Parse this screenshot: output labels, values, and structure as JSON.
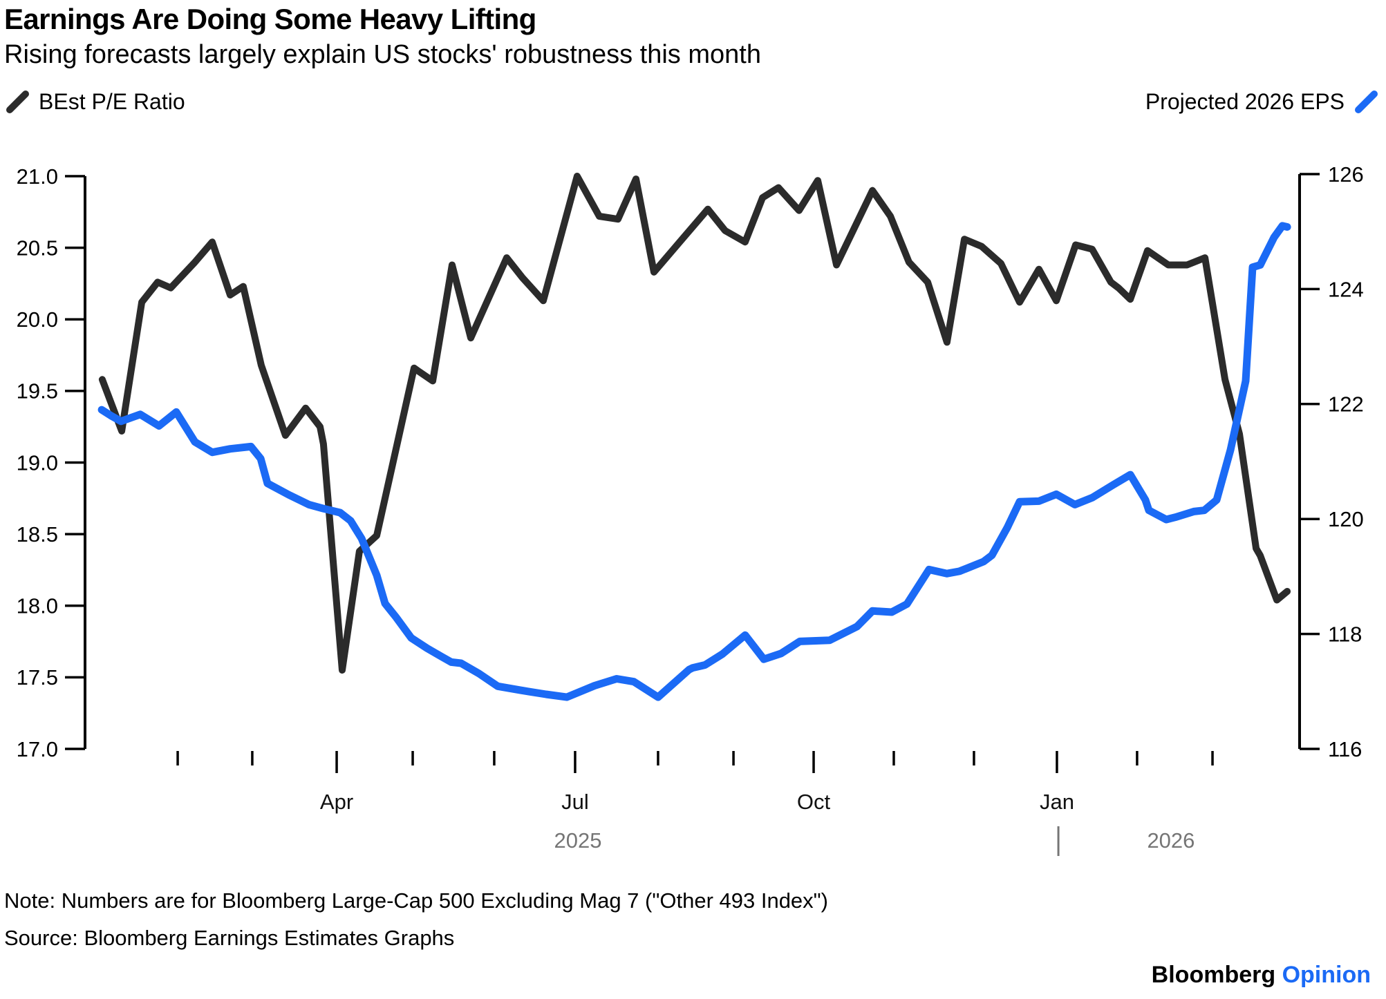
{
  "chart_data": {
    "type": "line",
    "title": "Earnings Are Doing Some Heavy Lifting",
    "subtitle": "Rising forecasts largely explain US stocks' robustness this month",
    "note": "Note: Numbers are for Bloomberg Large-Cap 500 Excluding Mag 7 (\"Other 493 Index\")",
    "source": "Source: Bloomberg Earnings Estimates Graphs",
    "legend_position": "top",
    "grid": false,
    "left_axis": {
      "ylim": [
        17.0,
        21.0
      ],
      "ticks": [
        21.0,
        20.5,
        20.0,
        19.5,
        19.0,
        18.5,
        18.0,
        17.5,
        17.0
      ],
      "decimals": 1
    },
    "right_axis": {
      "ylim": [
        116,
        126
      ],
      "ticks": [
        126,
        124,
        122,
        120,
        118,
        116
      ],
      "decimals": 0
    },
    "x_axis": {
      "months": [
        {
          "t": 0.0763,
          "label": ""
        },
        {
          "t": 0.1377,
          "label": ""
        },
        {
          "t": 0.2072,
          "label": "Apr"
        },
        {
          "t": 0.2698,
          "label": ""
        },
        {
          "t": 0.3369,
          "label": ""
        },
        {
          "t": 0.4035,
          "label": "Jul"
        },
        {
          "t": 0.4718,
          "label": ""
        },
        {
          "t": 0.5339,
          "label": ""
        },
        {
          "t": 0.5999,
          "label": "Oct"
        },
        {
          "t": 0.6659,
          "label": ""
        },
        {
          "t": 0.7319,
          "label": ""
        },
        {
          "t": 0.8002,
          "label": "Jan"
        },
        {
          "t": 0.8662,
          "label": ""
        },
        {
          "t": 0.9283,
          "label": ""
        }
      ],
      "years": [
        {
          "t": 0.4058,
          "label": "2025"
        },
        {
          "t": 0.8941,
          "label": "2026"
        }
      ],
      "year_divider_t": 0.8014
    },
    "series": [
      {
        "name": "BEst P/E Ratio",
        "axis": "left",
        "color": "#2b2b2b",
        "stroke_width": 10,
        "points": [
          [
            0.0142,
            19.58
          ],
          [
            0.0302,
            19.22
          ],
          [
            0.0467,
            20.12
          ],
          [
            0.0598,
            20.26
          ],
          [
            0.0706,
            20.22
          ],
          [
            0.0905,
            20.4
          ],
          [
            0.1047,
            20.54
          ],
          [
            0.1195,
            20.17
          ],
          [
            0.1303,
            20.23
          ],
          [
            0.1451,
            19.68
          ],
          [
            0.165,
            19.19
          ],
          [
            0.1816,
            19.38
          ],
          [
            0.1935,
            19.25
          ],
          [
            0.1963,
            19.13
          ],
          [
            0.2117,
            17.55
          ],
          [
            0.2259,
            18.38
          ],
          [
            0.2402,
            18.49
          ],
          [
            0.2709,
            19.66
          ],
          [
            0.2743,
            19.64
          ],
          [
            0.2863,
            19.57
          ],
          [
            0.3022,
            20.38
          ],
          [
            0.3176,
            19.87
          ],
          [
            0.3472,
            20.43
          ],
          [
            0.3602,
            20.29
          ],
          [
            0.3773,
            20.13
          ],
          [
            0.4052,
            21.0
          ],
          [
            0.4234,
            20.72
          ],
          [
            0.4388,
            20.7
          ],
          [
            0.4536,
            20.98
          ],
          [
            0.4684,
            20.33
          ],
          [
            0.4906,
            20.55
          ],
          [
            0.5128,
            20.77
          ],
          [
            0.527,
            20.62
          ],
          [
            0.5435,
            20.54
          ],
          [
            0.5578,
            20.85
          ],
          [
            0.5709,
            20.92
          ],
          [
            0.5879,
            20.76
          ],
          [
            0.6033,
            20.97
          ],
          [
            0.6187,
            20.38
          ],
          [
            0.6483,
            20.9
          ],
          [
            0.6631,
            20.72
          ],
          [
            0.6784,
            20.4
          ],
          [
            0.6938,
            20.26
          ],
          [
            0.7097,
            19.84
          ],
          [
            0.724,
            20.56
          ],
          [
            0.7382,
            20.51
          ],
          [
            0.7541,
            20.39
          ],
          [
            0.7695,
            20.12
          ],
          [
            0.7854,
            20.35
          ],
          [
            0.7997,
            20.13
          ],
          [
            0.8156,
            20.52
          ],
          [
            0.8292,
            20.49
          ],
          [
            0.8446,
            20.26
          ],
          [
            0.8509,
            20.22
          ],
          [
            0.8606,
            20.14
          ],
          [
            0.8748,
            20.48
          ],
          [
            0.8919,
            20.38
          ],
          [
            0.9073,
            20.38
          ],
          [
            0.9221,
            20.43
          ],
          [
            0.9386,
            19.58
          ],
          [
            0.9505,
            19.2
          ],
          [
            0.9642,
            18.4
          ],
          [
            0.9676,
            18.35
          ],
          [
            0.9813,
            18.04
          ],
          [
            0.9898,
            18.1
          ]
        ]
      },
      {
        "name": "Projected 2026 EPS",
        "axis": "right",
        "color": "#1b6af5",
        "stroke_width": 11,
        "points": [
          [
            0.0137,
            121.9
          ],
          [
            0.0211,
            121.8
          ],
          [
            0.0296,
            121.7
          ],
          [
            0.0455,
            121.82
          ],
          [
            0.0609,
            121.62
          ],
          [
            0.0751,
            121.86
          ],
          [
            0.0905,
            121.34
          ],
          [
            0.1047,
            121.16
          ],
          [
            0.1195,
            121.22
          ],
          [
            0.1366,
            121.26
          ],
          [
            0.1446,
            121.05
          ],
          [
            0.1502,
            120.62
          ],
          [
            0.1679,
            120.42
          ],
          [
            0.1844,
            120.25
          ],
          [
            0.1963,
            120.18
          ],
          [
            0.21,
            120.11
          ],
          [
            0.2186,
            119.97
          ],
          [
            0.2277,
            119.66
          ],
          [
            0.2402,
            119.02
          ],
          [
            0.247,
            118.53
          ],
          [
            0.2561,
            118.29
          ],
          [
            0.2686,
            117.93
          ],
          [
            0.2817,
            117.75
          ],
          [
            0.2931,
            117.61
          ],
          [
            0.3016,
            117.51
          ],
          [
            0.3096,
            117.49
          ],
          [
            0.3244,
            117.31
          ],
          [
            0.3398,
            117.09
          ],
          [
            0.3586,
            117.02
          ],
          [
            0.3796,
            116.95
          ],
          [
            0.3967,
            116.9
          ],
          [
            0.4195,
            117.1
          ],
          [
            0.4377,
            117.22
          ],
          [
            0.4519,
            117.17
          ],
          [
            0.4718,
            116.9
          ],
          [
            0.4974,
            117.38
          ],
          [
            0.5003,
            117.41
          ],
          [
            0.5105,
            117.46
          ],
          [
            0.5248,
            117.65
          ],
          [
            0.5435,
            117.98
          ],
          [
            0.5589,
            117.56
          ],
          [
            0.5731,
            117.66
          ],
          [
            0.5885,
            117.87
          ],
          [
            0.613,
            117.89
          ],
          [
            0.6357,
            118.13
          ],
          [
            0.6483,
            118.4
          ],
          [
            0.6642,
            118.38
          ],
          [
            0.6767,
            118.52
          ],
          [
            0.6949,
            119.12
          ],
          [
            0.7097,
            119.05
          ],
          [
            0.72,
            119.09
          ],
          [
            0.7399,
            119.26
          ],
          [
            0.7467,
            119.37
          ],
          [
            0.7593,
            119.85
          ],
          [
            0.7695,
            120.3
          ],
          [
            0.7854,
            120.31
          ],
          [
            0.7997,
            120.43
          ],
          [
            0.815,
            120.25
          ],
          [
            0.8292,
            120.37
          ],
          [
            0.8463,
            120.59
          ],
          [
            0.8606,
            120.77
          ],
          [
            0.8731,
            120.33
          ],
          [
            0.8759,
            120.15
          ],
          [
            0.8902,
            119.99
          ],
          [
            0.8976,
            120.03
          ],
          [
            0.913,
            120.13
          ],
          [
            0.9215,
            120.15
          ],
          [
            0.9317,
            120.33
          ],
          [
            0.9431,
            121.2
          ],
          [
            0.9556,
            122.4
          ],
          [
            0.9613,
            124.38
          ],
          [
            0.9676,
            124.42
          ],
          [
            0.979,
            124.9
          ],
          [
            0.9858,
            125.1
          ],
          [
            0.9898,
            125.08
          ]
        ]
      }
    ]
  },
  "footer": {
    "brand": "Bloomberg",
    "opinion": "Opinion"
  },
  "colors": {
    "pe_line": "#2b2b2b",
    "eps_line": "#1b6af5",
    "axis": "#000000",
    "year_gray": "#757575"
  }
}
